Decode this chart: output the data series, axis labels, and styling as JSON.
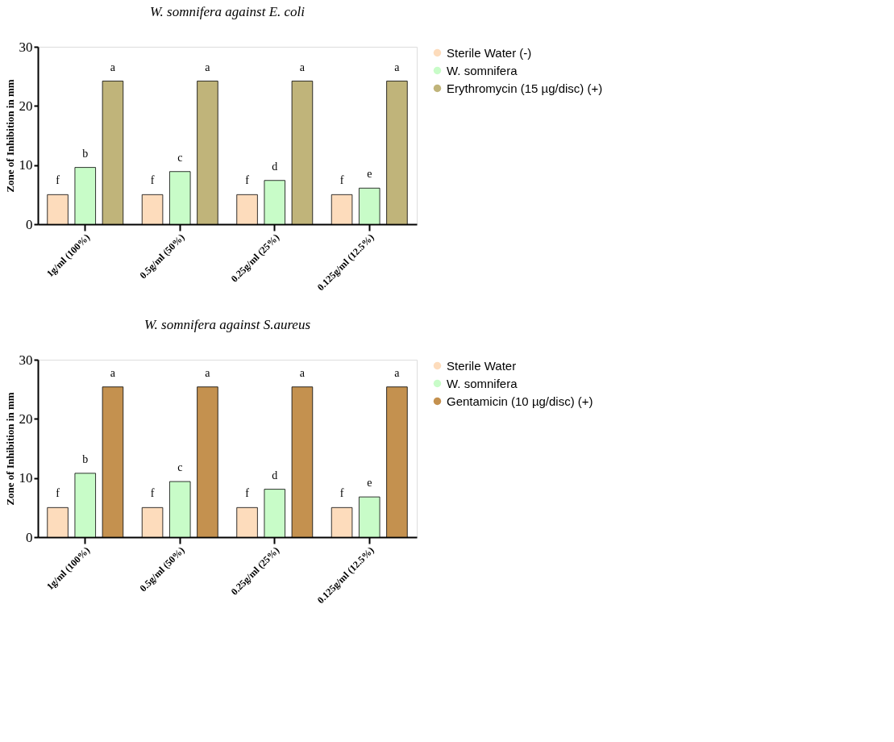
{
  "chart_data": [
    {
      "type": "bar",
      "title": "W. somnifera against E. coli",
      "ylabel": "Zone of Inhibition in mm",
      "categories": [
        "1g/ml (100%)",
        "0.5g/ml (50%)",
        "0.25g/ml (25%)",
        "0.125g/ml (12.5%)"
      ],
      "series": [
        {
          "name": "Sterile Water (-)",
          "color": "#fddcbc",
          "values": [
            5.0,
            5.0,
            5.0,
            5.0
          ],
          "value_labels": [
            "f",
            "f",
            "f",
            "f"
          ]
        },
        {
          "name": "W. somnifera",
          "color": "#c8fcc8",
          "values": [
            9.6,
            8.9,
            7.4,
            6.1
          ],
          "value_labels": [
            "b",
            "c",
            "d",
            "e"
          ]
        },
        {
          "name": "Erythromycin (15 µg/disc) (+)",
          "color": "#c0b47a",
          "values": [
            24.2,
            24.2,
            24.2,
            24.2
          ],
          "value_labels": [
            "a",
            "a",
            "a",
            "a"
          ]
        }
      ],
      "ylim": [
        0,
        30
      ],
      "yticks": [
        0,
        10,
        20,
        30
      ],
      "grid": false,
      "legend": "right"
    },
    {
      "type": "bar",
      "title": "W. somnifera against S.aureus",
      "ylabel": "Zone of Inhibition in mm",
      "categories": [
        "1g/ml (100%)",
        "0.5g/ml (50%)",
        "0.25g/ml (25%)",
        "0.125g/ml (12.5%)"
      ],
      "series": [
        {
          "name": "Sterile Water",
          "color": "#fddcbc",
          "values": [
            5.0,
            5.0,
            5.0,
            5.0
          ],
          "value_labels": [
            "f",
            "f",
            "f",
            "f"
          ]
        },
        {
          "name": "W. somnifera",
          "color": "#c8fcc8",
          "values": [
            10.8,
            9.4,
            8.1,
            6.8
          ],
          "value_labels": [
            "b",
            "c",
            "d",
            "e"
          ]
        },
        {
          "name": "Gentamicin (10 µg/disc) (+)",
          "color": "#c4914f",
          "values": [
            25.4,
            25.4,
            25.4,
            25.4
          ],
          "value_labels": [
            "a",
            "a",
            "a",
            "a"
          ]
        }
      ],
      "ylim": [
        0,
        30
      ],
      "yticks": [
        0,
        10,
        20,
        30
      ],
      "grid": false,
      "legend": "right"
    }
  ]
}
